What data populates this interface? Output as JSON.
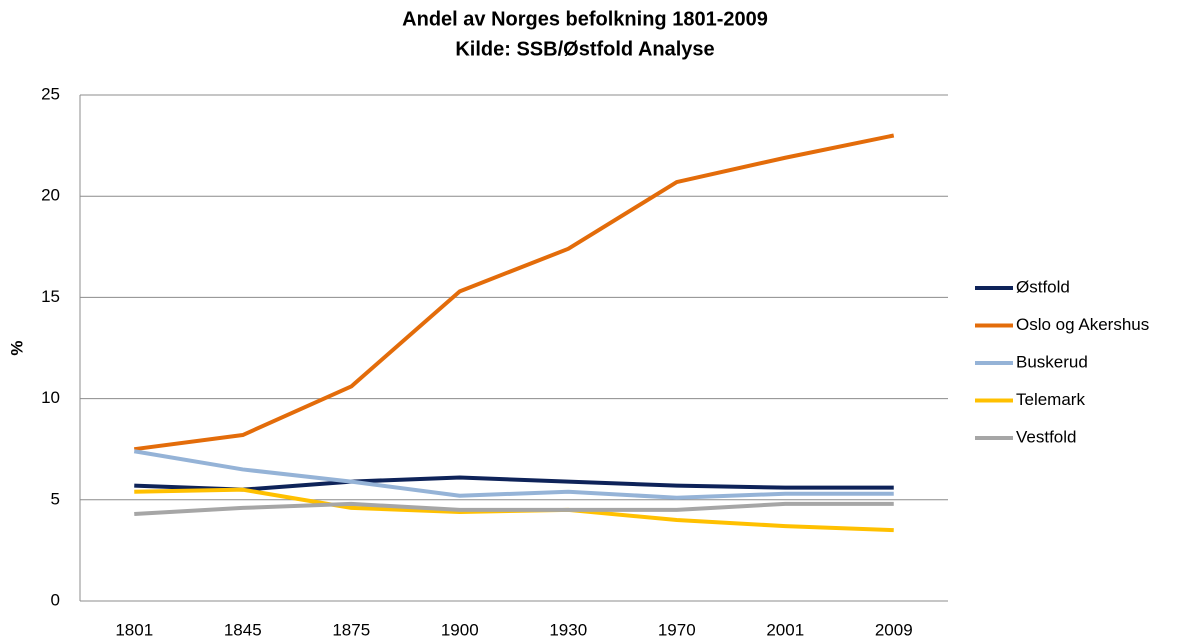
{
  "chart_data": {
    "type": "line",
    "title": "Andel av Norges befolkning 1801-2009",
    "subtitle": "Kilde: SSB/Østfold Analyse",
    "y_label": "%",
    "categories": [
      "1801",
      "1845",
      "1875",
      "1900",
      "1930",
      "1970",
      "2001",
      "2009"
    ],
    "series": [
      {
        "name": "Østfold",
        "color": "#0e2359",
        "values": [
          5.7,
          5.5,
          5.9,
          6.1,
          5.9,
          5.7,
          5.6,
          5.6
        ]
      },
      {
        "name": "Oslo og Akershus",
        "color": "#e36c0a",
        "values": [
          7.5,
          8.2,
          10.6,
          15.3,
          17.4,
          20.7,
          21.9,
          23.0
        ]
      },
      {
        "name": "Buskerud",
        "color": "#95b3d7",
        "values": [
          7.4,
          6.5,
          5.9,
          5.2,
          5.4,
          5.1,
          5.3,
          5.3
        ]
      },
      {
        "name": "Telemark",
        "color": "#ffc000",
        "values": [
          5.4,
          5.5,
          4.6,
          4.4,
          4.5,
          4.0,
          3.7,
          3.5
        ]
      },
      {
        "name": "Vestfold",
        "color": "#a6a6a6",
        "values": [
          4.3,
          4.6,
          4.8,
          4.5,
          4.5,
          4.5,
          4.8,
          4.8
        ]
      }
    ],
    "ylim": [
      0,
      25
    ],
    "yticks": [
      0,
      5,
      10,
      15,
      20,
      25
    ],
    "grid": true,
    "legend": "right"
  }
}
